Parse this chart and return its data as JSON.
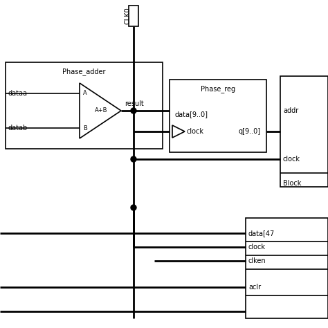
{
  "bg_color": "#ffffff",
  "line_color": "#000000",
  "lw": 1.2,
  "tlw": 2.0,
  "fs": 7,
  "clk_label": "CLK0",
  "phase_adder_label": "Phase_adder",
  "dataa_label": "dataa",
  "datab_label": "datab",
  "result_label": "result",
  "phase_reg_label": "Phase_reg",
  "phase_reg_data_label": "data[9..0]",
  "phase_reg_clock_label": "clock",
  "phase_reg_q_label": "q[9..0]",
  "rom_addr_label": "addr",
  "rom_clock_label": "clock",
  "rom_block_label": "Block",
  "lut_data_label": "data[47",
  "lut_clock_label": "clock",
  "lut_clken_label": "clken",
  "lut_aclr_label": "aclr"
}
